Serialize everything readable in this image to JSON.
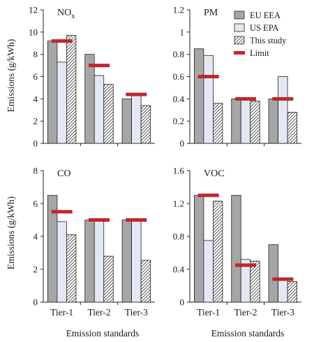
{
  "chart_data": [
    {
      "type": "bar",
      "title": "NOx",
      "title_main": "NO",
      "title_sub": "x",
      "categories": [
        "Tier-1",
        "Tier-2",
        "Tier-3"
      ],
      "ylim": [
        0,
        12
      ],
      "yticks": [
        "0",
        "2",
        "4",
        "6",
        "8",
        "10",
        "12"
      ],
      "ylabel": "Emissions (g/kWh)",
      "xlabel": "",
      "series": [
        {
          "name": "EU EEA",
          "values": [
            9.2,
            8.0,
            4.0
          ]
        },
        {
          "name": "US EPA",
          "values": [
            7.3,
            6.1,
            4.4
          ]
        },
        {
          "name": "This study",
          "values": [
            9.7,
            5.3,
            3.4
          ]
        }
      ],
      "limit": {
        "name": "Limit",
        "values": [
          9.2,
          7.0,
          4.4
        ]
      }
    },
    {
      "type": "bar",
      "title": "PM",
      "categories": [
        "Tier-1",
        "Tier-2",
        "Tier-3"
      ],
      "ylim": [
        0,
        1.2
      ],
      "yticks": [
        "0",
        "0.2",
        "0.4",
        "0.6",
        "0.8",
        "1",
        "1.2"
      ],
      "ylabel": "",
      "xlabel": "",
      "series": [
        {
          "name": "EU EEA",
          "values": [
            0.85,
            0.4,
            0.4
          ]
        },
        {
          "name": "US EPA",
          "values": [
            0.79,
            0.4,
            0.6
          ]
        },
        {
          "name": "This study",
          "values": [
            0.36,
            0.38,
            0.28
          ]
        }
      ],
      "limit": {
        "name": "Limit",
        "values": [
          0.6,
          0.4,
          0.4
        ]
      },
      "legend": {
        "placement": "top-right",
        "items": [
          "EU EEA",
          "US EPA",
          "This study",
          "Limit"
        ]
      }
    },
    {
      "type": "bar",
      "title": "CO",
      "categories": [
        "Tier-1",
        "Tier-2",
        "Tier-3"
      ],
      "ylim": [
        0,
        8
      ],
      "yticks": [
        "0",
        "2",
        "4",
        "6",
        "8"
      ],
      "ylabel": "Emissions (g/kWh)",
      "xlabel": "Emission standards",
      "series": [
        {
          "name": "EU EEA",
          "values": [
            6.5,
            5.0,
            5.0
          ]
        },
        {
          "name": "US EPA",
          "values": [
            4.9,
            5.0,
            5.0
          ]
        },
        {
          "name": "This study",
          "values": [
            4.1,
            2.8,
            2.55
          ]
        }
      ],
      "limit": {
        "name": "Limit",
        "values": [
          5.5,
          5.0,
          5.0
        ]
      }
    },
    {
      "type": "bar",
      "title": "VOC",
      "categories": [
        "Tier-1",
        "Tier-2",
        "Tier-3"
      ],
      "ylim": [
        0,
        1.6
      ],
      "yticks": [
        "0",
        "0.4",
        "0.8",
        "1.2",
        "1.6"
      ],
      "ylabel": "",
      "xlabel": "Emission standards",
      "series": [
        {
          "name": "EU EEA",
          "values": [
            1.3,
            1.3,
            0.7
          ]
        },
        {
          "name": "US EPA",
          "values": [
            0.75,
            0.52,
            0.27
          ]
        },
        {
          "name": "This study",
          "values": [
            1.23,
            0.5,
            0.25
          ]
        }
      ],
      "limit": {
        "name": "Limit",
        "values": [
          1.3,
          0.45,
          0.28
        ]
      }
    }
  ],
  "colors": {
    "eu_eea": "#a6a6a6",
    "us_epa": "#e4e8f4",
    "limit": "#c0272d",
    "outline": "#222222"
  }
}
